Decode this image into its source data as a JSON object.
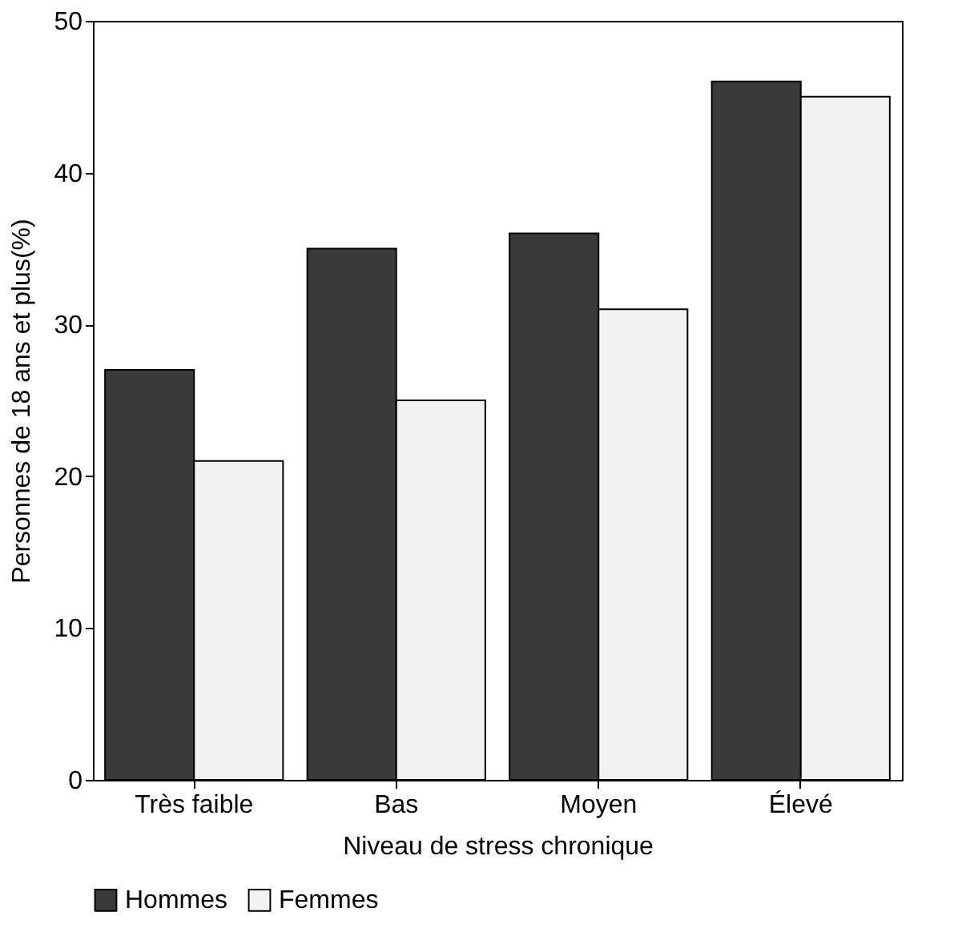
{
  "chart_data": {
    "type": "bar",
    "xlabel": "Niveau de stress chronique",
    "ylabel": "Personnes de 18 ans et plus(%)",
    "categories": [
      "Très faible",
      "Bas",
      "Moyen",
      "Élevé"
    ],
    "series": [
      {
        "name": "Hommes",
        "color": "#3a3a3a",
        "values": [
          27,
          35,
          36,
          46
        ]
      },
      {
        "name": "Femmes",
        "color": "#f2f2f2",
        "values": [
          21,
          25,
          31,
          45
        ]
      }
    ],
    "ylim": [
      0,
      50
    ],
    "yticks": [
      0,
      10,
      20,
      30,
      40,
      50
    ],
    "grid": false,
    "legend": "bottom"
  }
}
